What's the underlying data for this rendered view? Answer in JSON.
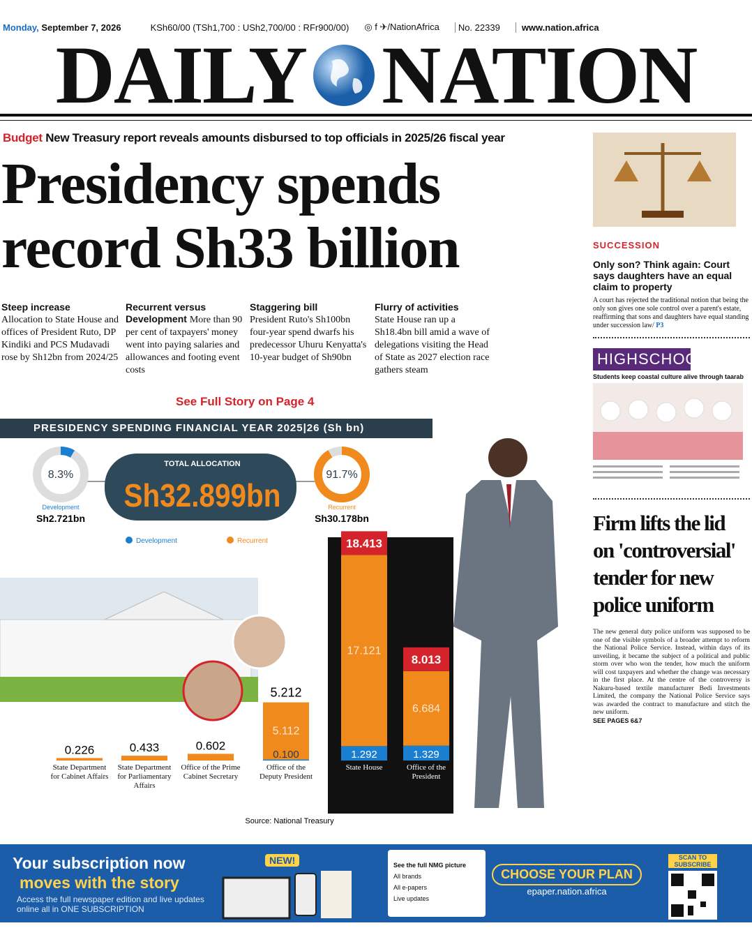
{
  "topbar": {
    "date_day": "Monday,",
    "date": "September 7, 2026",
    "price": "KSh60/00 (TSh1,700 : USh2,700/00 : RFr900/00)",
    "social": "/NationAfrica",
    "issue": "No. 22339",
    "website": "www.nation.africa"
  },
  "masthead": {
    "left": "DAILY",
    "right": "NATION"
  },
  "lead": {
    "kicker": "Budget",
    "strapline": "New Treasury report reveals amounts disbursed to top officials in 2025/26 fiscal year",
    "headline": "Presidency spends record Sh33 billion",
    "columns": [
      {
        "heading": "Steep increase",
        "text": "Allocation to State House and offices of President Ruto, DP Kindiki and PCS Mudavadi rose by Sh12bn from 2024/25"
      },
      {
        "heading": "Recurrent versus Development",
        "text": "More than 90 per cent of taxpayers' money went into paying salaries and allowances and footing event costs"
      },
      {
        "heading": "Staggering bill",
        "text": "President Ruto's Sh100bn four-year spend dwarfs his predecessor Uhuru Kenyatta's 10-year budget of Sh90bn"
      },
      {
        "heading": "Flurry of activities",
        "text": "State House ran up a Sh18.4bn bill amid a wave of delegations visiting the Head of State as 2027 election race gathers steam"
      }
    ],
    "see_more": "See Full Story on Page 4"
  },
  "infographic": {
    "title": "PRESIDENCY SPENDING FINANCIAL YEAR 2025|26 (Sh bn)",
    "total_label": "TOTAL ALLOCATION",
    "total": "Sh32.899bn",
    "shares": [
      {
        "name": "Development",
        "value": 8.3,
        "value_label": "8.3%",
        "amount": "Sh2.721bn",
        "color": "#1a7fd0"
      },
      {
        "name": "Recurrent",
        "value": 91.7,
        "value_label": "91.7%",
        "amount": "Sh30.178bn",
        "color": "#f08a1c"
      }
    ],
    "offices": [
      {
        "name": "State Department for Cabinet Affairs",
        "total": 0.226
      },
      {
        "name": "State Department for Parliamentary Affairs",
        "total": 0.433
      },
      {
        "name": "Office of the Prime Cabinet Secretary",
        "total": 0.602
      },
      {
        "name": "Office of the Deputy President",
        "total": 5.212,
        "recurrent": 5.112,
        "development": 0.1,
        "development_label": "0.100"
      },
      {
        "name": "State House",
        "total": 18.413,
        "recurrent": 17.121,
        "development": 1.292
      },
      {
        "name": "Office of the President",
        "total": 8.013,
        "recurrent": 6.684,
        "development": 1.329
      }
    ],
    "source": "Source: National Treasury"
  },
  "sidebar": {
    "story1": {
      "section": "SUCCESSION",
      "headline": "Only son? Think again: Court says daughters have an equal claim to property",
      "body": "A court has rejected the traditional notion that being the only son gives one sole control over a parent's estate, reaffirming that sons and daughters have equal standing under succession law/",
      "ref": "P3"
    },
    "promo": {
      "brand": "HIGHSCHOOLER",
      "caption": "Students keep coastal culture alive through taarab"
    },
    "story2": {
      "headline": "Firm lifts the lid on 'controversial' tender for new police uniform",
      "body": "The new general duty police uniform was supposed to be one of the visible symbols of a broader attempt to reform the National Police Service. Instead, within days of its unveiling, it became the subject of a political and public storm over who won the tender, how much the uniform will cost taxpayers and whether the change was necessary in the first place. At the centre of the controversy is Nakuru-based textile manufacturer Bedi Investments Limited, the company the National Police Service says was awarded the contract to manufacture and stitch the new uniform.",
      "ref": "SEE PAGES 6&7"
    }
  },
  "ad": {
    "line1": "Your subscription now",
    "line2": "moves with the story",
    "text": "Access the full newspaper edition and live updates online all in ONE SUBSCRIPTION",
    "badge": "NEW!",
    "offer_title": "See the full NMG picture",
    "offer_items": [
      "All brands",
      "All e-papers",
      "Live updates"
    ],
    "cta": "CHOOSE YOUR PLAN",
    "url": "epaper.nation.africa",
    "qr": "SCAN TO SUBSCRIBE"
  }
}
